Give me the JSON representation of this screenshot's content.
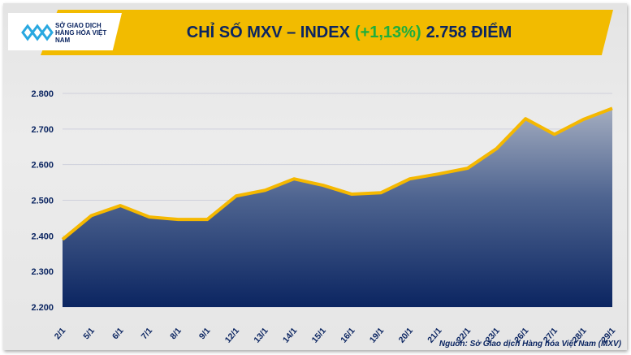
{
  "header": {
    "logo_text": "SỞ GIAO DỊCH HÀNG HÓA VIỆT NAM",
    "title_main": "CHỈ SỐ MXV – INDEX",
    "title_change": "(+1,13%)",
    "title_value": "2.758 ĐIỂM"
  },
  "source": "Nguồn: Sở Giao dịch Hàng hóa Việt Nam (MXV)",
  "colors": {
    "line": "#f5b800",
    "area_top": "#a4adc0",
    "area_bottom": "#0b2561",
    "change": "#1fae3c",
    "text": "#0b2561"
  },
  "chart_data": {
    "type": "area",
    "title": "CHỈ SỐ MXV – INDEX (+1,13%) 2.758 ĐIỂM",
    "categories": [
      "2/1",
      "5/1",
      "6/1",
      "7/1",
      "8/1",
      "9/1",
      "12/1",
      "13/1",
      "14/1",
      "15/1",
      "16/1",
      "19/1",
      "20/1",
      "21/1",
      "22/1",
      "23/1",
      "26/1",
      "27/1",
      "28/1",
      "29/1"
    ],
    "values": [
      2390,
      2457,
      2485,
      2453,
      2446,
      2446,
      2512,
      2528,
      2560,
      2542,
      2517,
      2521,
      2560,
      2574,
      2590,
      2645,
      2729,
      2685,
      2727,
      2758
    ],
    "ylim": [
      2200,
      2800
    ],
    "yticks": [
      "2.200",
      "2.300",
      "2.400",
      "2.500",
      "2.600",
      "2.700",
      "2.800"
    ],
    "grid": true,
    "legend": "none"
  }
}
